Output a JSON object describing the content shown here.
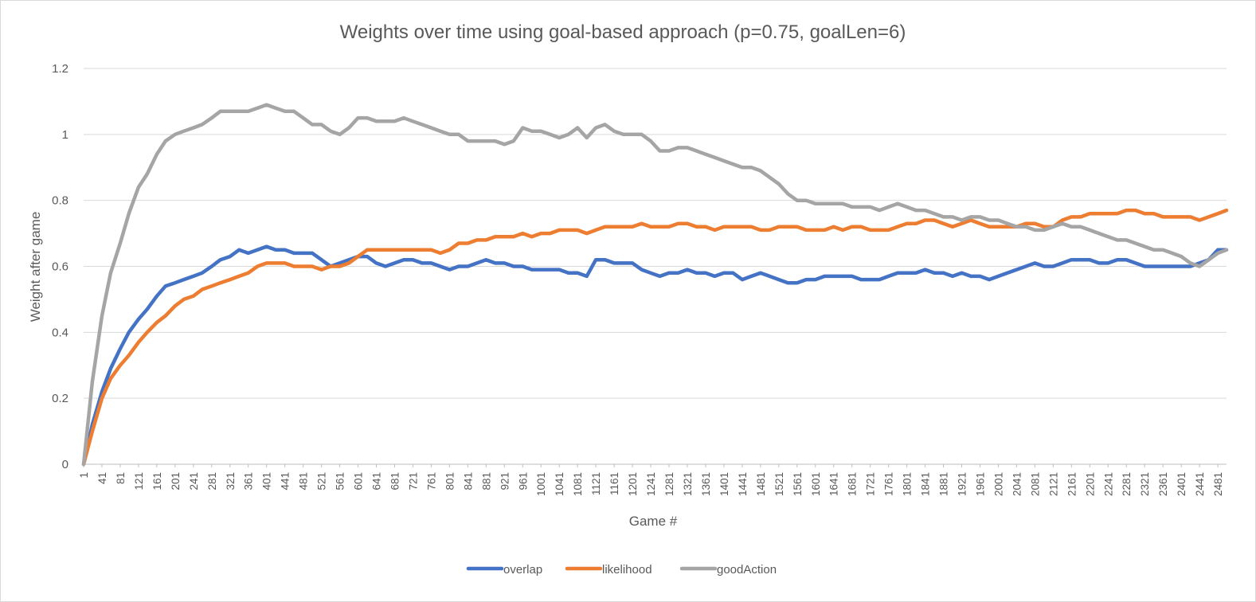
{
  "chart_data": {
    "type": "line",
    "title": "Weights over time using goal-based approach (p=0.75, goalLen=6)",
    "xlabel": "Game #",
    "ylabel": "Weight after game",
    "ylim": [
      0,
      1.2
    ],
    "yticks": [
      "0",
      "0.2",
      "0.4",
      "0.6",
      "0.8",
      "1",
      "1.2"
    ],
    "xlim": [
      1,
      2500
    ],
    "xticks": [
      "1",
      "41",
      "81",
      "121",
      "161",
      "201",
      "241",
      "281",
      "321",
      "361",
      "401",
      "441",
      "481",
      "521",
      "561",
      "601",
      "641",
      "681",
      "721",
      "761",
      "801",
      "841",
      "881",
      "921",
      "961",
      "1001",
      "1041",
      "1081",
      "1121",
      "1161",
      "1201",
      "1241",
      "1281",
      "1321",
      "1361",
      "1401",
      "1441",
      "1481",
      "1521",
      "1561",
      "1601",
      "1641",
      "1681",
      "1721",
      "1761",
      "1801",
      "1841",
      "1881",
      "1921",
      "1961",
      "2001",
      "2041",
      "2081",
      "2121",
      "2161",
      "2201",
      "2241",
      "2281",
      "2321",
      "2361",
      "2401",
      "2441",
      "2481"
    ],
    "grid": true,
    "legend_position": "bottom",
    "series": [
      {
        "name": "overlap",
        "color": "#4472c4",
        "x": [
          1,
          20,
          41,
          60,
          81,
          100,
          121,
          140,
          161,
          180,
          201,
          220,
          241,
          260,
          281,
          300,
          321,
          341,
          361,
          381,
          401,
          421,
          441,
          461,
          481,
          501,
          521,
          541,
          561,
          581,
          601,
          621,
          641,
          661,
          681,
          701,
          721,
          741,
          761,
          781,
          801,
          821,
          841,
          861,
          881,
          901,
          921,
          941,
          961,
          981,
          1001,
          1021,
          1041,
          1061,
          1081,
          1101,
          1121,
          1141,
          1161,
          1181,
          1201,
          1221,
          1241,
          1261,
          1281,
          1301,
          1321,
          1341,
          1361,
          1381,
          1401,
          1421,
          1441,
          1461,
          1481,
          1501,
          1521,
          1541,
          1561,
          1581,
          1601,
          1621,
          1641,
          1661,
          1681,
          1701,
          1721,
          1741,
          1761,
          1781,
          1801,
          1821,
          1841,
          1861,
          1881,
          1901,
          1921,
          1941,
          1961,
          1981,
          2001,
          2021,
          2041,
          2061,
          2081,
          2101,
          2121,
          2141,
          2161,
          2181,
          2201,
          2221,
          2241,
          2261,
          2281,
          2301,
          2321,
          2341,
          2361,
          2381,
          2401,
          2421,
          2441,
          2461,
          2481,
          2500
        ],
        "values": [
          0.0,
          0.12,
          0.22,
          0.29,
          0.35,
          0.4,
          0.44,
          0.47,
          0.51,
          0.54,
          0.55,
          0.56,
          0.57,
          0.58,
          0.6,
          0.62,
          0.63,
          0.65,
          0.64,
          0.65,
          0.66,
          0.65,
          0.65,
          0.64,
          0.64,
          0.64,
          0.62,
          0.6,
          0.61,
          0.62,
          0.63,
          0.63,
          0.61,
          0.6,
          0.61,
          0.62,
          0.62,
          0.61,
          0.61,
          0.6,
          0.59,
          0.6,
          0.6,
          0.61,
          0.62,
          0.61,
          0.61,
          0.6,
          0.6,
          0.59,
          0.59,
          0.59,
          0.59,
          0.58,
          0.58,
          0.57,
          0.62,
          0.62,
          0.61,
          0.61,
          0.61,
          0.59,
          0.58,
          0.57,
          0.58,
          0.58,
          0.59,
          0.58,
          0.58,
          0.57,
          0.58,
          0.58,
          0.56,
          0.57,
          0.58,
          0.57,
          0.56,
          0.55,
          0.55,
          0.56,
          0.56,
          0.57,
          0.57,
          0.57,
          0.57,
          0.56,
          0.56,
          0.56,
          0.57,
          0.58,
          0.58,
          0.58,
          0.59,
          0.58,
          0.58,
          0.57,
          0.58,
          0.57,
          0.57,
          0.56,
          0.57,
          0.58,
          0.59,
          0.6,
          0.61,
          0.6,
          0.6,
          0.61,
          0.62,
          0.62,
          0.62,
          0.61,
          0.61,
          0.62,
          0.62,
          0.61,
          0.6,
          0.6,
          0.6,
          0.6,
          0.6,
          0.6,
          0.61,
          0.62,
          0.65,
          0.65
        ]
      },
      {
        "name": "likelihood",
        "color": "#ed7d31",
        "x": [
          1,
          20,
          41,
          60,
          81,
          100,
          121,
          140,
          161,
          180,
          201,
          220,
          241,
          260,
          281,
          300,
          321,
          341,
          361,
          381,
          401,
          421,
          441,
          461,
          481,
          501,
          521,
          541,
          561,
          581,
          601,
          621,
          641,
          661,
          681,
          701,
          721,
          741,
          761,
          781,
          801,
          821,
          841,
          861,
          881,
          901,
          921,
          941,
          961,
          981,
          1001,
          1021,
          1041,
          1061,
          1081,
          1101,
          1121,
          1141,
          1161,
          1181,
          1201,
          1221,
          1241,
          1261,
          1281,
          1301,
          1321,
          1341,
          1361,
          1381,
          1401,
          1421,
          1441,
          1461,
          1481,
          1501,
          1521,
          1541,
          1561,
          1581,
          1601,
          1621,
          1641,
          1661,
          1681,
          1701,
          1721,
          1741,
          1761,
          1781,
          1801,
          1821,
          1841,
          1861,
          1881,
          1901,
          1921,
          1941,
          1961,
          1981,
          2001,
          2021,
          2041,
          2061,
          2081,
          2101,
          2121,
          2141,
          2161,
          2181,
          2201,
          2221,
          2241,
          2261,
          2281,
          2301,
          2321,
          2341,
          2361,
          2381,
          2401,
          2421,
          2441,
          2461,
          2481,
          2500
        ],
        "values": [
          0.0,
          0.1,
          0.2,
          0.26,
          0.3,
          0.33,
          0.37,
          0.4,
          0.43,
          0.45,
          0.48,
          0.5,
          0.51,
          0.53,
          0.54,
          0.55,
          0.56,
          0.57,
          0.58,
          0.6,
          0.61,
          0.61,
          0.61,
          0.6,
          0.6,
          0.6,
          0.59,
          0.6,
          0.6,
          0.61,
          0.63,
          0.65,
          0.65,
          0.65,
          0.65,
          0.65,
          0.65,
          0.65,
          0.65,
          0.64,
          0.65,
          0.67,
          0.67,
          0.68,
          0.68,
          0.69,
          0.69,
          0.69,
          0.7,
          0.69,
          0.7,
          0.7,
          0.71,
          0.71,
          0.71,
          0.7,
          0.71,
          0.72,
          0.72,
          0.72,
          0.72,
          0.73,
          0.72,
          0.72,
          0.72,
          0.73,
          0.73,
          0.72,
          0.72,
          0.71,
          0.72,
          0.72,
          0.72,
          0.72,
          0.71,
          0.71,
          0.72,
          0.72,
          0.72,
          0.71,
          0.71,
          0.71,
          0.72,
          0.71,
          0.72,
          0.72,
          0.71,
          0.71,
          0.71,
          0.72,
          0.73,
          0.73,
          0.74,
          0.74,
          0.73,
          0.72,
          0.73,
          0.74,
          0.73,
          0.72,
          0.72,
          0.72,
          0.72,
          0.73,
          0.73,
          0.72,
          0.72,
          0.74,
          0.75,
          0.75,
          0.76,
          0.76,
          0.76,
          0.76,
          0.77,
          0.77,
          0.76,
          0.76,
          0.75,
          0.75,
          0.75,
          0.75,
          0.74,
          0.75,
          0.76,
          0.77
        ]
      },
      {
        "name": "goodAction",
        "color": "#a5a5a5",
        "x": [
          1,
          20,
          41,
          60,
          81,
          100,
          121,
          140,
          161,
          180,
          201,
          220,
          241,
          260,
          281,
          300,
          321,
          341,
          361,
          381,
          401,
          421,
          441,
          461,
          481,
          501,
          521,
          541,
          561,
          581,
          601,
          621,
          641,
          661,
          681,
          701,
          721,
          741,
          761,
          781,
          801,
          821,
          841,
          861,
          881,
          901,
          921,
          941,
          961,
          981,
          1001,
          1021,
          1041,
          1061,
          1081,
          1101,
          1121,
          1141,
          1161,
          1181,
          1201,
          1221,
          1241,
          1261,
          1281,
          1301,
          1321,
          1341,
          1361,
          1381,
          1401,
          1421,
          1441,
          1461,
          1481,
          1501,
          1521,
          1541,
          1561,
          1581,
          1601,
          1621,
          1641,
          1661,
          1681,
          1701,
          1721,
          1741,
          1761,
          1781,
          1801,
          1821,
          1841,
          1861,
          1881,
          1901,
          1921,
          1941,
          1961,
          1981,
          2001,
          2021,
          2041,
          2061,
          2081,
          2101,
          2121,
          2141,
          2161,
          2181,
          2201,
          2221,
          2241,
          2261,
          2281,
          2301,
          2321,
          2341,
          2361,
          2381,
          2401,
          2421,
          2441,
          2461,
          2481,
          2500
        ],
        "values": [
          0.0,
          0.25,
          0.45,
          0.58,
          0.67,
          0.76,
          0.84,
          0.88,
          0.94,
          0.98,
          1.0,
          1.01,
          1.02,
          1.03,
          1.05,
          1.07,
          1.07,
          1.07,
          1.07,
          1.08,
          1.09,
          1.08,
          1.07,
          1.07,
          1.05,
          1.03,
          1.03,
          1.01,
          1.0,
          1.02,
          1.05,
          1.05,
          1.04,
          1.04,
          1.04,
          1.05,
          1.04,
          1.03,
          1.02,
          1.01,
          1.0,
          1.0,
          0.98,
          0.98,
          0.98,
          0.98,
          0.97,
          0.98,
          1.02,
          1.01,
          1.01,
          1.0,
          0.99,
          1.0,
          1.02,
          0.99,
          1.02,
          1.03,
          1.01,
          1.0,
          1.0,
          1.0,
          0.98,
          0.95,
          0.95,
          0.96,
          0.96,
          0.95,
          0.94,
          0.93,
          0.92,
          0.91,
          0.9,
          0.9,
          0.89,
          0.87,
          0.85,
          0.82,
          0.8,
          0.8,
          0.79,
          0.79,
          0.79,
          0.79,
          0.78,
          0.78,
          0.78,
          0.77,
          0.78,
          0.79,
          0.78,
          0.77,
          0.77,
          0.76,
          0.75,
          0.75,
          0.74,
          0.75,
          0.75,
          0.74,
          0.74,
          0.73,
          0.72,
          0.72,
          0.71,
          0.71,
          0.72,
          0.73,
          0.72,
          0.72,
          0.71,
          0.7,
          0.69,
          0.68,
          0.68,
          0.67,
          0.66,
          0.65,
          0.65,
          0.64,
          0.63,
          0.61,
          0.6,
          0.62,
          0.64,
          0.65
        ]
      }
    ]
  }
}
